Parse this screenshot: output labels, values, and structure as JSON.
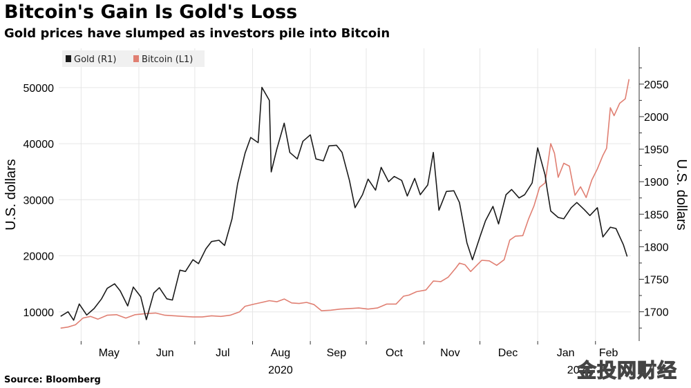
{
  "title": "Bitcoin's Gain Is Gold's Loss",
  "subtitle": "Gold prices have slumped as investors pile into Bitcoin",
  "source": "Source: Bloomberg",
  "watermark": "金投网财经",
  "colors": {
    "gold": "#1a1a1a",
    "bitcoin": "#e07f72",
    "grid": "#e6e6e6",
    "plot_bg": "#ffffff"
  },
  "chart_data": {
    "type": "line",
    "title": "Bitcoin's Gain Is Gold's Loss",
    "subtitle": "Gold prices have slumped as investors pile into Bitcoin",
    "legend_position": "top-left",
    "grid": true,
    "x_month_labels": [
      "May",
      "Jun",
      "Jul",
      "Aug",
      "Sep",
      "Oct",
      "Nov",
      "Dec",
      "Jan",
      "Feb"
    ],
    "x_year_labels": [
      "2020",
      "2021"
    ],
    "y_left": {
      "label": "U.S. dollars",
      "ticks": [
        10000,
        20000,
        30000,
        40000,
        50000
      ],
      "range": [
        4800,
        57000
      ]
    },
    "y_right": {
      "label": "U.S. dollars",
      "ticks": [
        1700,
        1750,
        1800,
        1850,
        1900,
        1950,
        2000,
        2050
      ],
      "range": [
        1655,
        2105
      ]
    },
    "series": [
      {
        "name": "Gold (R1)",
        "axis": "right",
        "x": [
          "2020-04-20",
          "2020-04-24",
          "2020-04-27",
          "2020-04-30",
          "2020-05-04",
          "2020-05-08",
          "2020-05-12",
          "2020-05-15",
          "2020-05-19",
          "2020-05-22",
          "2020-05-26",
          "2020-05-29",
          "2020-06-02",
          "2020-06-05",
          "2020-06-09",
          "2020-06-12",
          "2020-06-16",
          "2020-06-19",
          "2020-06-23",
          "2020-06-26",
          "2020-06-30",
          "2020-07-03",
          "2020-07-07",
          "2020-07-10",
          "2020-07-14",
          "2020-07-17",
          "2020-07-21",
          "2020-07-24",
          "2020-07-28",
          "2020-07-31",
          "2020-08-04",
          "2020-08-06",
          "2020-08-10",
          "2020-08-11",
          "2020-08-14",
          "2020-08-18",
          "2020-08-21",
          "2020-08-25",
          "2020-08-28",
          "2020-09-01",
          "2020-09-04",
          "2020-09-08",
          "2020-09-11",
          "2020-09-15",
          "2020-09-18",
          "2020-09-22",
          "2020-09-25",
          "2020-09-29",
          "2020-10-02",
          "2020-10-06",
          "2020-10-09",
          "2020-10-13",
          "2020-10-16",
          "2020-10-20",
          "2020-10-23",
          "2020-10-27",
          "2020-10-30",
          "2020-11-03",
          "2020-11-06",
          "2020-11-09",
          "2020-11-13",
          "2020-11-17",
          "2020-11-20",
          "2020-11-24",
          "2020-11-27",
          "2020-12-01",
          "2020-12-04",
          "2020-12-08",
          "2020-12-11",
          "2020-12-15",
          "2020-12-18",
          "2020-12-22",
          "2020-12-25",
          "2020-12-29",
          "2021-01-01",
          "2021-01-05",
          "2021-01-06",
          "2021-01-08",
          "2021-01-12",
          "2021-01-15",
          "2021-01-19",
          "2021-01-22",
          "2021-01-26",
          "2021-01-29",
          "2021-02-02",
          "2021-02-05",
          "2021-02-09",
          "2021-02-12",
          "2021-02-16",
          "2021-02-18"
        ],
        "values": [
          1693,
          1700,
          1687,
          1712,
          1695,
          1705,
          1720,
          1736,
          1743,
          1732,
          1709,
          1738,
          1723,
          1688,
          1729,
          1737,
          1720,
          1718,
          1764,
          1762,
          1780,
          1774,
          1797,
          1808,
          1810,
          1802,
          1843,
          1897,
          1944,
          1968,
          1960,
          2045,
          2025,
          1915,
          1950,
          1990,
          1945,
          1935,
          1962,
          1972,
          1935,
          1932,
          1955,
          1956,
          1945,
          1902,
          1860,
          1880,
          1904,
          1887,
          1922,
          1900,
          1908,
          1902,
          1878,
          1905,
          1880,
          1895,
          1945,
          1856,
          1885,
          1886,
          1868,
          1806,
          1780,
          1815,
          1840,
          1862,
          1835,
          1880,
          1888,
          1875,
          1880,
          1898,
          1952,
          1910,
          1890,
          1855,
          1845,
          1843,
          1860,
          1868,
          1857,
          1848,
          1860,
          1815,
          1830,
          1828,
          1803,
          1785
        ]
      },
      {
        "name": "Bitcoin (L1)",
        "axis": "left",
        "x": [
          "2020-04-20",
          "2020-04-24",
          "2020-04-28",
          "2020-05-02",
          "2020-05-06",
          "2020-05-10",
          "2020-05-15",
          "2020-05-20",
          "2020-05-25",
          "2020-05-30",
          "2020-06-05",
          "2020-06-10",
          "2020-06-15",
          "2020-06-20",
          "2020-06-25",
          "2020-06-30",
          "2020-07-05",
          "2020-07-10",
          "2020-07-15",
          "2020-07-20",
          "2020-07-25",
          "2020-07-28",
          "2020-08-02",
          "2020-08-06",
          "2020-08-10",
          "2020-08-14",
          "2020-08-18",
          "2020-08-22",
          "2020-08-26",
          "2020-08-30",
          "2020-09-03",
          "2020-09-07",
          "2020-09-12",
          "2020-09-17",
          "2020-09-22",
          "2020-09-27",
          "2020-10-02",
          "2020-10-07",
          "2020-10-12",
          "2020-10-17",
          "2020-10-21",
          "2020-10-24",
          "2020-10-28",
          "2020-11-02",
          "2020-11-06",
          "2020-11-10",
          "2020-11-14",
          "2020-11-18",
          "2020-11-20",
          "2020-11-23",
          "2020-11-26",
          "2020-11-29",
          "2020-12-02",
          "2020-12-06",
          "2020-12-10",
          "2020-12-14",
          "2020-12-17",
          "2020-12-20",
          "2020-12-24",
          "2020-12-27",
          "2020-12-30",
          "2021-01-02",
          "2021-01-05",
          "2021-01-08",
          "2021-01-10",
          "2021-01-12",
          "2021-01-15",
          "2021-01-18",
          "2021-01-21",
          "2021-01-24",
          "2021-01-27",
          "2021-01-30",
          "2021-02-02",
          "2021-02-05",
          "2021-02-07",
          "2021-02-09",
          "2021-02-11",
          "2021-02-14",
          "2021-02-17",
          "2021-02-19"
        ],
        "values": [
          7100,
          7300,
          7700,
          8900,
          9200,
          8700,
          9400,
          9500,
          8900,
          9500,
          9700,
          9800,
          9400,
          9300,
          9200,
          9100,
          9100,
          9300,
          9200,
          9400,
          10000,
          11000,
          11400,
          11700,
          12000,
          11800,
          12300,
          11600,
          11500,
          11700,
          11300,
          10200,
          10300,
          10500,
          10600,
          10700,
          10500,
          10700,
          11400,
          11400,
          12800,
          13000,
          13600,
          13900,
          15500,
          15400,
          16200,
          17800,
          18700,
          18400,
          17200,
          18200,
          19200,
          19100,
          18300,
          19300,
          22800,
          23500,
          23600,
          26500,
          28900,
          32200,
          33000,
          40000,
          38300,
          34000,
          36500,
          36000,
          30800,
          32300,
          30400,
          33500,
          35500,
          37900,
          39200,
          46400,
          45000,
          47200,
          48000,
          51500
        ]
      }
    ]
  }
}
